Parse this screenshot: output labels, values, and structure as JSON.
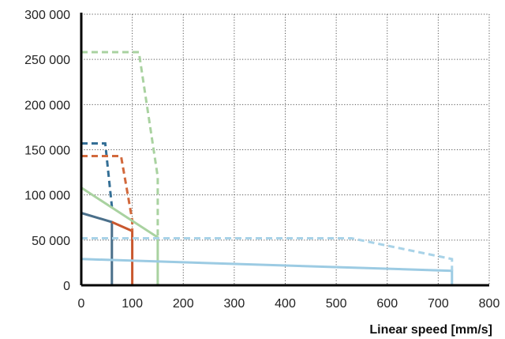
{
  "chart_data": {
    "type": "line",
    "title": "",
    "xlabel": "Linear speed [mm/s]",
    "ylabel": "",
    "xlim": [
      0,
      800
    ],
    "ylim": [
      0,
      300000
    ],
    "x_ticks": [
      0,
      100,
      200,
      300,
      400,
      500,
      600,
      700,
      800
    ],
    "y_ticks": [
      0,
      50000,
      100000,
      150000,
      200000,
      250000,
      300000
    ],
    "x_tick_labels": [
      "0",
      "100",
      "200",
      "300",
      "400",
      "500",
      "600",
      "700",
      "800"
    ],
    "y_tick_labels": [
      "0",
      "50 000",
      "100 000",
      "150 000",
      "200 000",
      "250 000",
      "300 000"
    ],
    "grid": true,
    "grid_style": "dotted",
    "legend": "none",
    "series": [
      {
        "color": "#4a6f8a",
        "style": "solid",
        "points": [
          [
            0,
            80000
          ],
          [
            60,
            70000
          ],
          [
            60,
            0
          ]
        ]
      },
      {
        "color": "#346f96",
        "style": "dashed",
        "points": [
          [
            0,
            157000
          ],
          [
            47,
            157000
          ],
          [
            60,
            87000
          ]
        ]
      },
      {
        "color": "#c9572e",
        "style": "solid",
        "points": [
          [
            60,
            70000
          ],
          [
            100,
            60000
          ],
          [
            100,
            0
          ]
        ]
      },
      {
        "color": "#d2693c",
        "style": "dashed",
        "points": [
          [
            0,
            143000
          ],
          [
            78,
            143000
          ],
          [
            100,
            72000
          ],
          [
            100,
            60000
          ]
        ]
      },
      {
        "color": "#a9d2a0",
        "style": "solid",
        "points": [
          [
            0,
            108000
          ],
          [
            150,
            53000
          ],
          [
            150,
            0
          ]
        ]
      },
      {
        "color": "#a9d2a0",
        "style": "dashed",
        "points": [
          [
            0,
            258000
          ],
          [
            113,
            258000
          ],
          [
            150,
            120000
          ],
          [
            150,
            53000
          ]
        ]
      },
      {
        "color": "#9ccbe3",
        "style": "solid",
        "points": [
          [
            0,
            29000
          ],
          [
            727,
            16000
          ],
          [
            727,
            0
          ]
        ]
      },
      {
        "color": "#a9d3e8",
        "style": "dashed",
        "points": [
          [
            0,
            52000
          ],
          [
            530,
            52000
          ],
          [
            727,
            29000
          ],
          [
            727,
            16000
          ]
        ]
      }
    ]
  }
}
